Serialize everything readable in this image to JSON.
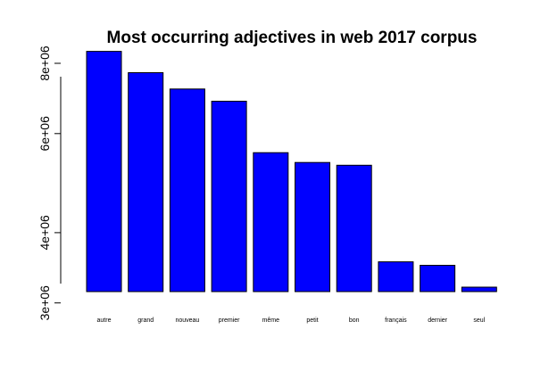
{
  "chart_data": {
    "type": "bar",
    "title": "Most occurring adjectives in web 2017 corpus",
    "xlabel": "",
    "ylabel": "",
    "y_scale": "log",
    "ylim": [
      2900000,
      8700000
    ],
    "y_ticks": [
      {
        "value": 3000000,
        "label": "3e+06"
      },
      {
        "value": 4000000,
        "label": "4e+06"
      },
      {
        "value": 6000000,
        "label": "6e+06"
      },
      {
        "value": 8000000,
        "label": "8e+06"
      }
    ],
    "categories": [
      "autre",
      "grand",
      "nouveau",
      "premier",
      "même",
      "petit",
      "bon",
      "français",
      "dernier",
      "seul"
    ],
    "values": [
      8400000,
      7700000,
      7200000,
      6850000,
      5550000,
      5330000,
      5270000,
      3550000,
      3500000,
      3200000
    ],
    "bar_color": "#0000ff",
    "grid": false,
    "legend": "none"
  }
}
